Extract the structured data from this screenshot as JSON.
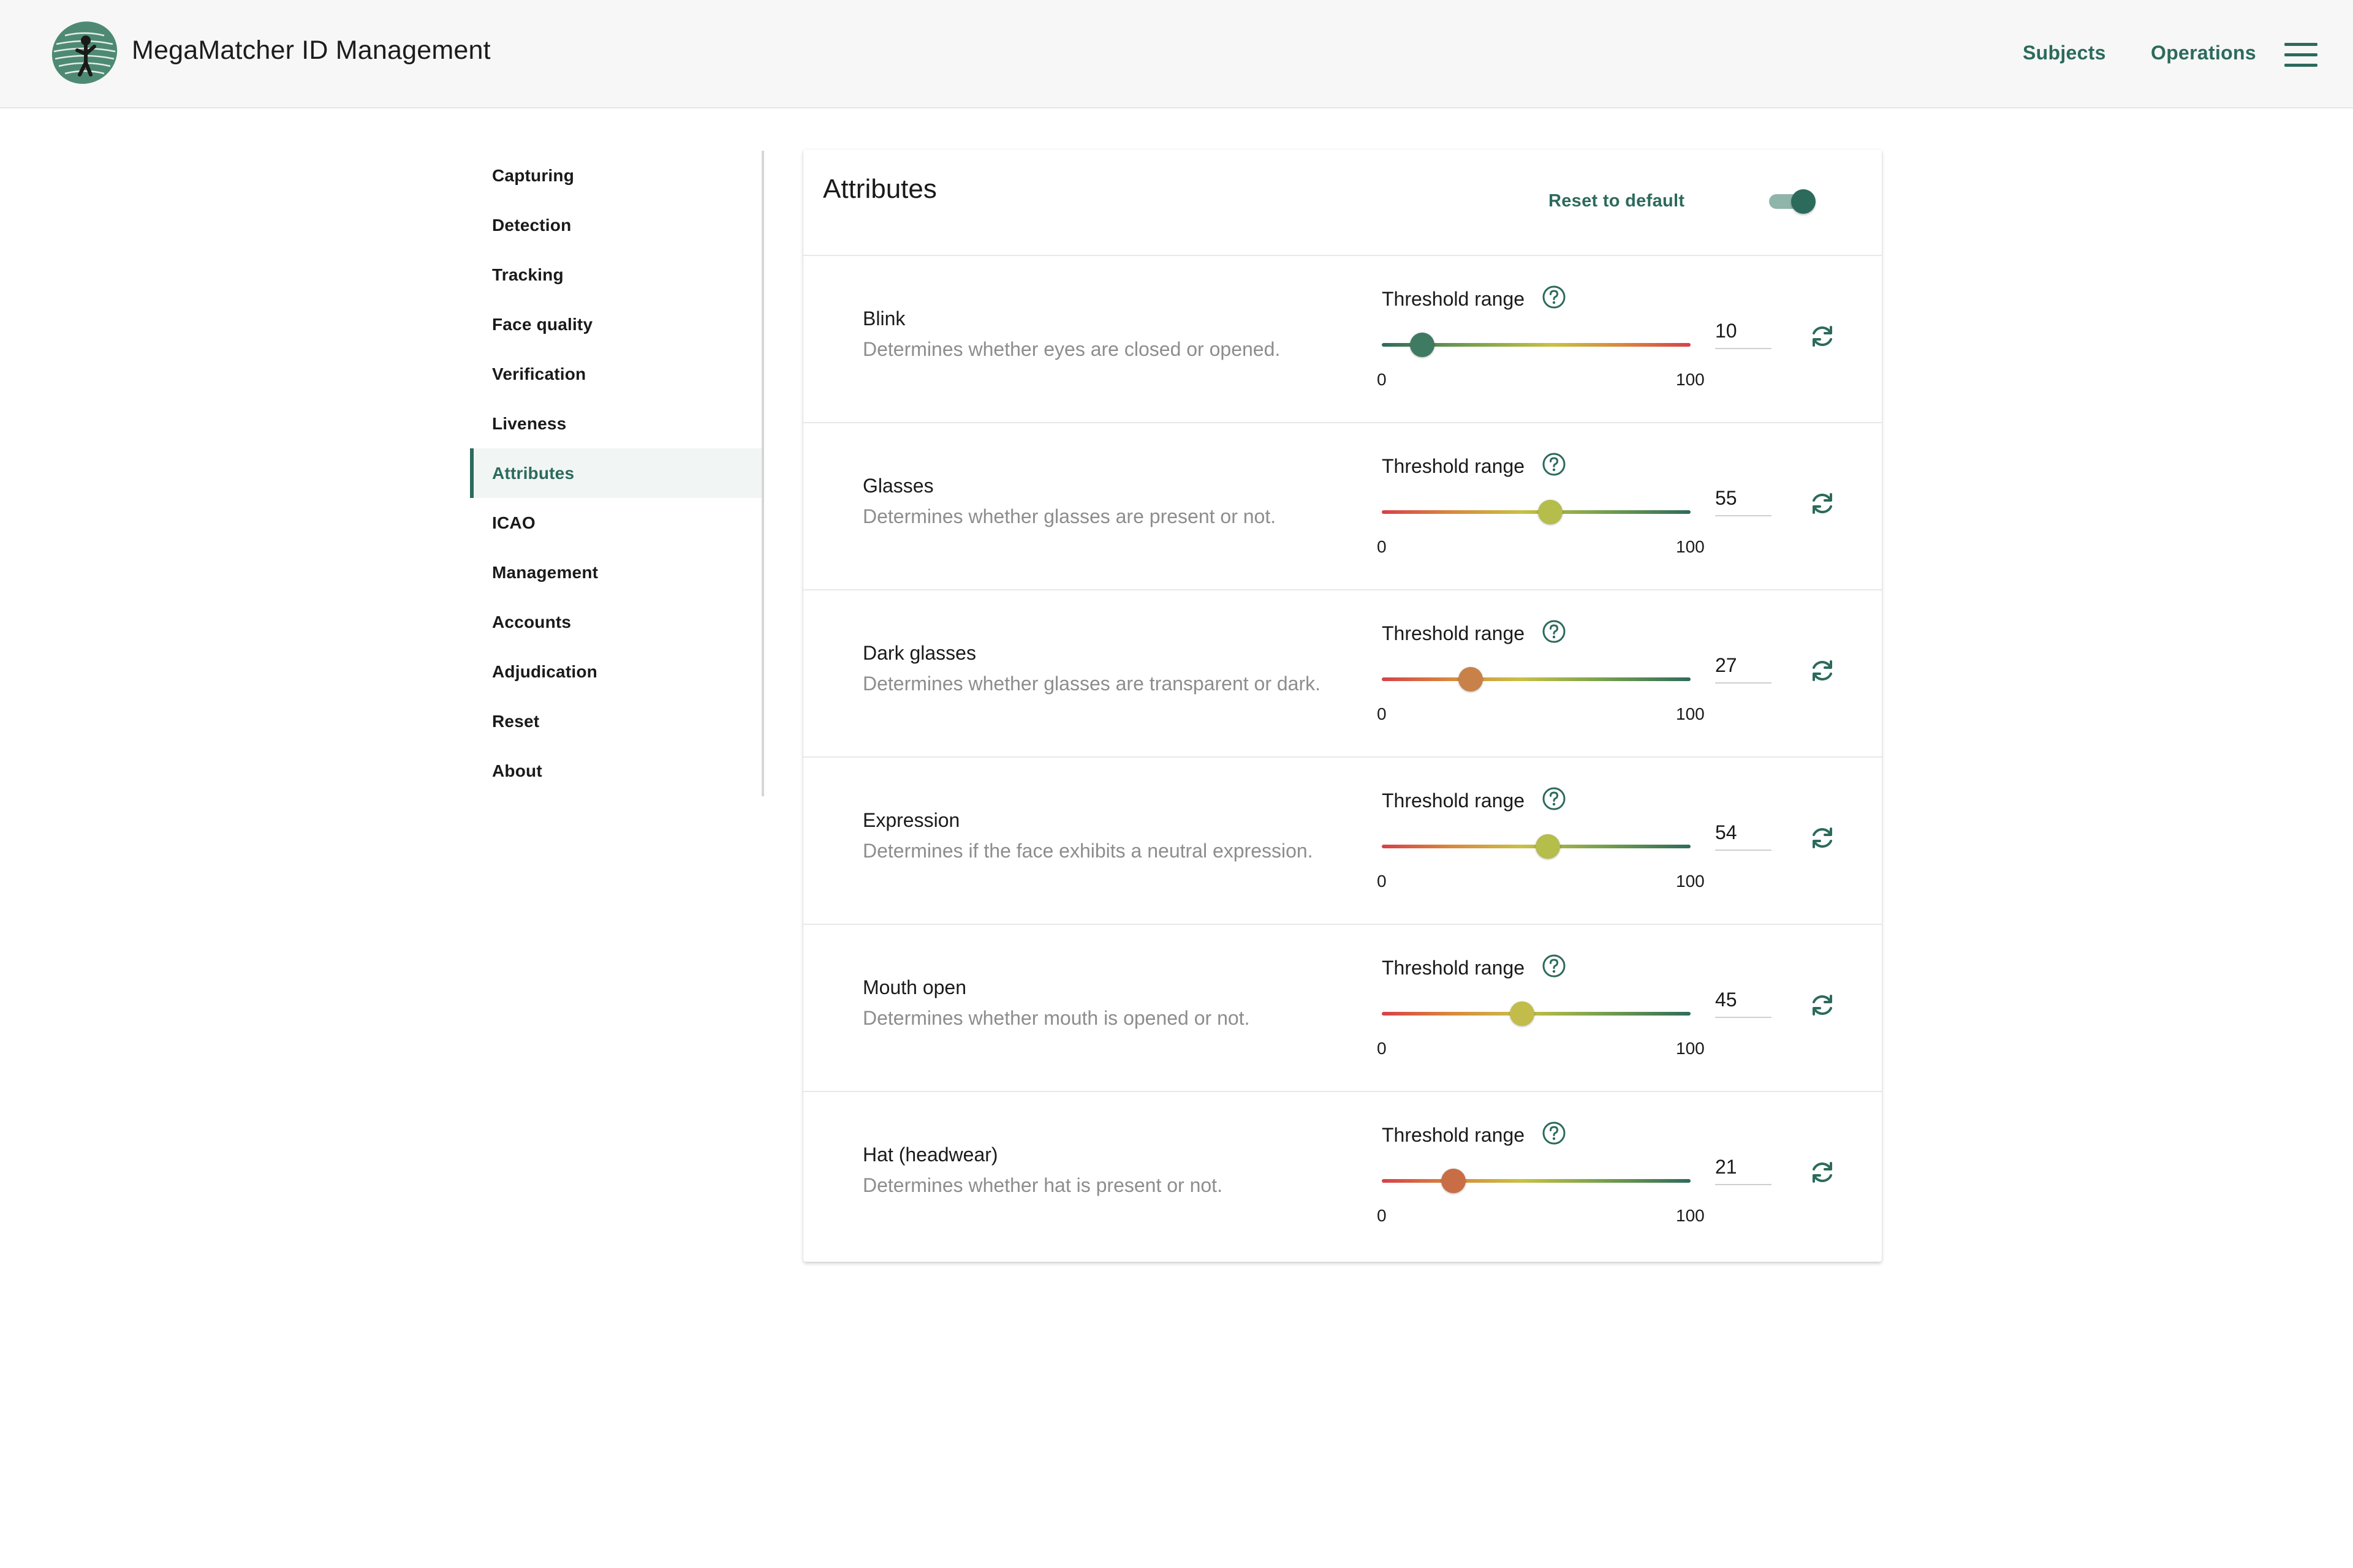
{
  "header": {
    "app_title": "MegaMatcher ID Management",
    "nav": {
      "subjects": "Subjects",
      "operations": "Operations"
    },
    "menu_icon": "hamburger-menu-icon",
    "logo_icon": "megamatcher-logo-icon"
  },
  "sidebar": {
    "items": [
      {
        "label": "Capturing",
        "active": false
      },
      {
        "label": "Detection",
        "active": false
      },
      {
        "label": "Tracking",
        "active": false
      },
      {
        "label": "Face quality",
        "active": false
      },
      {
        "label": "Verification",
        "active": false
      },
      {
        "label": "Liveness",
        "active": false
      },
      {
        "label": "Attributes",
        "active": true
      },
      {
        "label": "ICAO",
        "active": false
      },
      {
        "label": "Management",
        "active": false
      },
      {
        "label": "Accounts",
        "active": false
      },
      {
        "label": "Adjudication",
        "active": false
      },
      {
        "label": "Reset",
        "active": false
      },
      {
        "label": "About",
        "active": false
      }
    ]
  },
  "card": {
    "title": "Attributes",
    "reset_label": "Reset to default",
    "toggle_on": true
  },
  "threshold_label": "Threshold range",
  "range": {
    "min": "0",
    "max": "100"
  },
  "colors": {
    "accent": "#2c6a5c",
    "thumb_green": "#3f7a62",
    "thumb_yellow": "#b5bd4b",
    "thumb_orange": "#c9814a",
    "thumb_orange_red": "#c96d46"
  },
  "attributes": [
    {
      "name": "Blink",
      "description": "Determines whether eyes are closed or opened.",
      "value": "10",
      "gradient": "green-to-red",
      "thumb_color": "#3f7a62"
    },
    {
      "name": "Glasses",
      "description": "Determines whether glasses are present or not.",
      "value": "55",
      "gradient": "red-to-green",
      "thumb_color": "#b5bd4b"
    },
    {
      "name": "Dark glasses",
      "description": "Determines whether glasses are transparent or dark.",
      "value": "27",
      "gradient": "red-to-green",
      "thumb_color": "#c9814a"
    },
    {
      "name": "Expression",
      "description": "Determines if the face exhibits a neutral expression.",
      "value": "54",
      "gradient": "red-to-green",
      "thumb_color": "#b5bd4b"
    },
    {
      "name": "Mouth open",
      "description": "Determines whether mouth is opened or not.",
      "value": "45",
      "gradient": "red-to-green",
      "thumb_color": "#c2bd4b"
    },
    {
      "name": "Hat (headwear)",
      "description": "Determines whether hat is present or not.",
      "value": "21",
      "gradient": "red-to-green",
      "thumb_color": "#c96d46"
    }
  ]
}
